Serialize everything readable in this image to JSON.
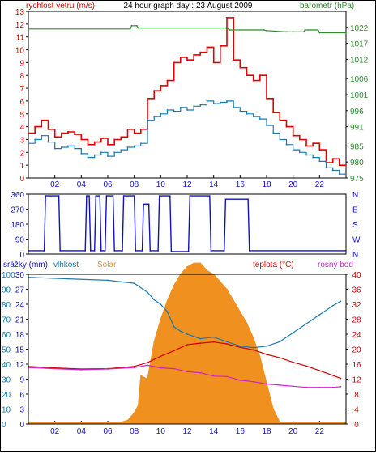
{
  "header": {
    "left_label": "rychlost vetru (m/s)",
    "title": "24 hour graph day : 23 August 2009",
    "right_label": "barometr (hPa)"
  },
  "chart_data": [
    {
      "type": "line",
      "name": "wind-pressure",
      "xlabel": "",
      "ylabel": "rychlost vetru (m/s)",
      "y2label": "barometr (hPa)",
      "xlim": [
        0,
        24
      ],
      "ylim": [
        0,
        13
      ],
      "y2lim": [
        975,
        1027
      ],
      "x_ticks": [
        "02",
        "04",
        "06",
        "08",
        "10",
        "12",
        "14",
        "16",
        "18",
        "20",
        "22"
      ],
      "y_ticks": [
        0,
        1,
        2,
        3,
        4,
        5,
        6,
        7,
        8,
        9,
        10,
        11,
        12,
        13
      ],
      "y2_ticks": [
        975,
        980,
        985,
        991,
        996,
        1001,
        1006,
        1012,
        1017,
        1022
      ],
      "series": [
        {
          "key": "gust",
          "color": "#e00000",
          "x": [
            0,
            0.5,
            1,
            1.5,
            2,
            2.5,
            3,
            3.5,
            4,
            4.5,
            5,
            5.5,
            6,
            6.5,
            7,
            7.5,
            8,
            8.5,
            9,
            9.5,
            10,
            10.5,
            11,
            11.5,
            12,
            12.5,
            13,
            13.5,
            14,
            14.5,
            15,
            15.5,
            16,
            16.5,
            17,
            17.5,
            18,
            18.5,
            19,
            19.5,
            20,
            20.5,
            21,
            21.5,
            22,
            22.5,
            23,
            23.5
          ],
          "values": [
            3.5,
            4,
            4.5,
            3.8,
            3.2,
            3.5,
            3.6,
            3.4,
            3,
            2.6,
            2.8,
            3.1,
            2.6,
            3,
            3.2,
            3.8,
            3.5,
            3.8,
            6.2,
            6.8,
            7.2,
            7.6,
            9,
            9.4,
            9.2,
            9.6,
            9.8,
            10.2,
            9,
            10.3,
            12.5,
            9.2,
            8.6,
            8,
            7.6,
            8,
            6.2,
            5.1,
            4.5,
            4,
            3.3,
            3,
            2.5,
            2.7,
            2.2,
            1.2,
            1.5,
            1
          ]
        },
        {
          "key": "avg",
          "color": "#1a7ab0",
          "x": [
            0,
            0.5,
            1,
            1.5,
            2,
            2.5,
            3,
            3.5,
            4,
            4.5,
            5,
            5.5,
            6,
            6.5,
            7,
            7.5,
            8,
            8.5,
            9,
            9.5,
            10,
            10.5,
            11,
            11.5,
            12,
            12.5,
            13,
            13.5,
            14,
            14.5,
            15,
            15.5,
            16,
            16.5,
            17,
            17.5,
            18,
            18.5,
            19,
            19.5,
            20,
            20.5,
            21,
            21.5,
            22,
            22.5,
            23,
            23.5
          ],
          "values": [
            2.7,
            3,
            3.3,
            2.8,
            2.3,
            2.4,
            2.5,
            2.3,
            1.9,
            1.6,
            1.8,
            2,
            1.7,
            2,
            2.2,
            2.4,
            2.5,
            2.7,
            4.5,
            4.8,
            5,
            5.3,
            5.2,
            5.5,
            5.3,
            5.6,
            5.7,
            6,
            5.8,
            5.9,
            6,
            5.5,
            5.2,
            5,
            4.8,
            4.6,
            4.1,
            3.5,
            3,
            2.6,
            2.2,
            2,
            1.8,
            1.6,
            1.3,
            0.8,
            0.6,
            0.3
          ]
        },
        {
          "key": "pressure",
          "color": "#2e8b2e",
          "axis": "y2",
          "x": [
            0,
            7.7,
            7.8,
            8.2,
            8.3,
            15.0,
            15.2,
            17.8,
            18.0,
            19.5,
            20.0,
            20.8,
            20.9,
            21.9,
            22.0,
            24
          ],
          "values": [
            1021.5,
            1021.5,
            1022.5,
            1022.5,
            1021.8,
            1021.8,
            1021.2,
            1021.2,
            1021,
            1020.6,
            1020.6,
            1020.6,
            1021.2,
            1021.2,
            1020.3,
            1020.3
          ]
        }
      ]
    },
    {
      "type": "line",
      "name": "wind-direction",
      "xlim": [
        0,
        24
      ],
      "ylim": [
        0,
        360
      ],
      "y_ticks": [
        0,
        90,
        180,
        270,
        360
      ],
      "y2_ticks": [
        "N",
        "W",
        "S",
        "E",
        "N"
      ],
      "series": [
        {
          "key": "direction",
          "color": "#1010c0",
          "x": [
            0,
            1.2,
            1.3,
            2.3,
            2.4,
            4.3,
            4.4,
            4.6,
            4.7,
            5.0,
            5.1,
            5.4,
            5.5,
            5.8,
            5.9,
            6.4,
            6.5,
            7.1,
            7.2,
            8.0,
            8.1,
            8.6,
            8.7,
            9.1,
            9.2,
            9.8,
            9.9,
            10.7,
            10.8,
            12.1,
            12.2,
            13.7,
            13.8,
            14.8,
            14.9,
            16.6,
            16.7,
            24
          ],
          "values": [
            20,
            20,
            350,
            350,
            20,
            20,
            350,
            350,
            20,
            20,
            350,
            350,
            20,
            20,
            350,
            350,
            20,
            20,
            350,
            350,
            20,
            20,
            300,
            300,
            20,
            20,
            350,
            350,
            15,
            15,
            350,
            350,
            20,
            20,
            330,
            330,
            20,
            20
          ]
        }
      ]
    },
    {
      "type": "area",
      "name": "weather-lower",
      "x_ticks": [
        "02",
        "04",
        "06",
        "08",
        "10",
        "12",
        "14",
        "16",
        "18",
        "20",
        "22"
      ],
      "labels": {
        "rain": "srážky (mm)",
        "humidity": "vlhkost",
        "solar": "Solar",
        "temperature": "teplota (°C)",
        "dew": "rosný bod"
      },
      "y_ticks_rain": [
        0,
        3,
        6,
        9,
        12,
        15,
        18,
        21,
        24,
        27,
        30
      ],
      "y_ticks_humidity": [
        0,
        10,
        20,
        30,
        40,
        50,
        60,
        70,
        80,
        90,
        100
      ],
      "y_ticks_temp": [
        0,
        4,
        8,
        12,
        16,
        20,
        24,
        28,
        32,
        36,
        40
      ],
      "xlim": [
        0,
        24
      ],
      "ylim_temp": [
        0,
        40
      ],
      "series": [
        {
          "key": "humidity",
          "name": "vlhkost",
          "color": "#1a7ab0",
          "x": [
            0,
            3,
            6,
            7,
            8,
            9,
            9.5,
            10,
            10.5,
            11,
            11.5,
            12,
            13,
            14,
            15,
            16,
            17,
            18,
            19,
            20,
            21,
            22,
            23,
            23.6
          ],
          "values": [
            98,
            97,
            96,
            95,
            94,
            88,
            83,
            80,
            75,
            65,
            62,
            60,
            57,
            58,
            55,
            52,
            51,
            52,
            55,
            61,
            67,
            73,
            79,
            82
          ]
        },
        {
          "key": "temperature",
          "name": "teplota (°C)",
          "color": "#d00000",
          "x": [
            0,
            2,
            4,
            6,
            8,
            9,
            10,
            11,
            12,
            13,
            14,
            15,
            16,
            17,
            18,
            19,
            20,
            21,
            22,
            23,
            23.6
          ],
          "values": [
            15.4,
            15,
            14.7,
            14.8,
            15.4,
            16.4,
            18.1,
            19.6,
            21.2,
            21.6,
            21.9,
            21.4,
            20.5,
            19.8,
            18.6,
            17.7,
            16.5,
            15.5,
            14.3,
            13,
            12.2
          ]
        },
        {
          "key": "dew",
          "name": "rosný bod",
          "color": "#d020d0",
          "x": [
            0,
            2,
            4,
            6,
            8,
            9,
            10,
            11,
            12,
            13,
            14,
            15,
            16,
            17,
            18,
            19,
            20,
            21,
            22,
            23,
            23.6
          ],
          "values": [
            15.1,
            14.8,
            14.5,
            14.7,
            15.1,
            15.7,
            15,
            14.8,
            14,
            13.7,
            12.8,
            12.7,
            11.7,
            11.3,
            10.7,
            10.4,
            10.1,
            9.8,
            9.8,
            9.8,
            10
          ]
        },
        {
          "key": "solar",
          "name": "Solar",
          "color": "#f0901e",
          "x": [
            0,
            7,
            7.5,
            8,
            8.3,
            8.5,
            9,
            9.5,
            10,
            10.5,
            11,
            11.5,
            12,
            12.5,
            13,
            13.5,
            14,
            14.5,
            15,
            15.5,
            16,
            16.5,
            17,
            17.5,
            18,
            18.5,
            19,
            24
          ],
          "values": [
            0.5,
            0.5,
            1,
            3,
            5,
            13,
            12,
            22,
            28,
            33,
            37,
            40,
            42,
            43,
            43,
            41,
            40,
            38,
            36,
            33,
            30,
            27,
            23,
            18,
            11,
            4,
            0.5,
            0.5
          ]
        }
      ]
    }
  ]
}
